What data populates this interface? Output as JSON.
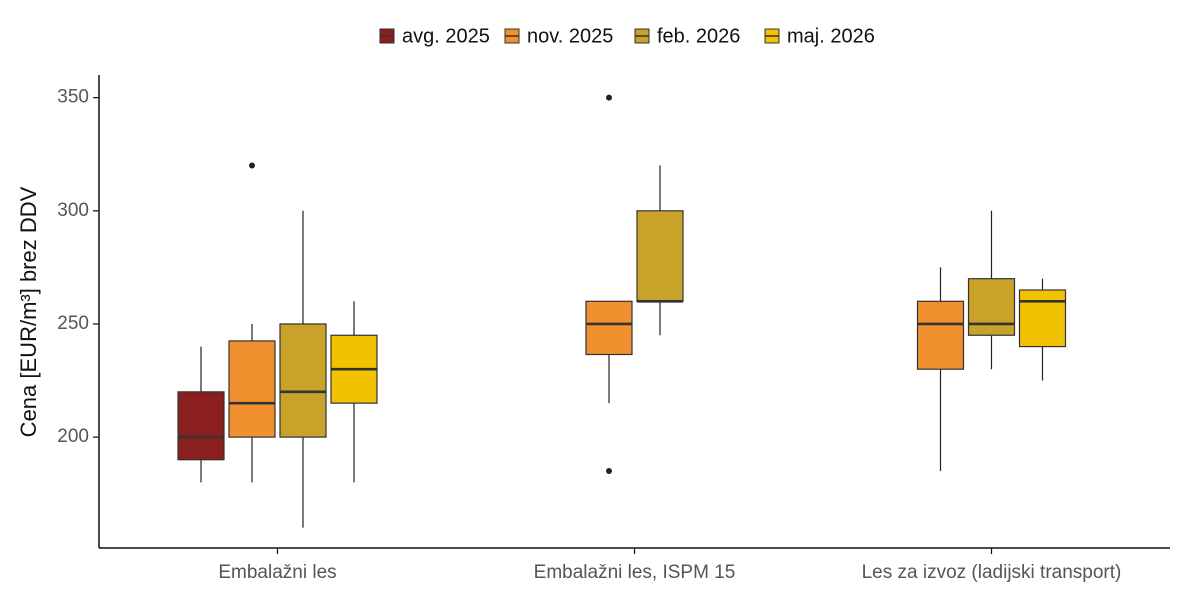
{
  "chart_data": {
    "type": "boxplot",
    "y_label": "Cena [EUR/m³] brez DDV",
    "categories": [
      "Embalažni les",
      "Embalažni les, ISPM 15",
      "Les za izvoz (ladijski transport)"
    ],
    "ylim": [
      151,
      360
    ],
    "yticks": [
      200,
      250,
      300,
      350
    ],
    "grid": false,
    "legend": "top",
    "series": [
      {
        "name": "avg. 2025",
        "color": "#8b1e1e",
        "boxes": [
          {
            "min": 180,
            "q1": 190,
            "median": 200,
            "q3": 220,
            "max": 240
          },
          null,
          null
        ]
      },
      {
        "name": "nov. 2025",
        "color": "#f0902f",
        "boxes": [
          {
            "min": 180,
            "q1": 200,
            "median": 215,
            "q3": 242.5,
            "max": 250,
            "outliers": [
              320
            ]
          },
          {
            "min": 215,
            "q1": 236.5,
            "median": 250,
            "q3": 260,
            "max": 260,
            "outliers": [
              350,
              185
            ]
          },
          {
            "min": 185,
            "q1": 230,
            "median": 250,
            "q3": 260,
            "max": 275
          }
        ]
      },
      {
        "name": "feb. 2026",
        "color": "#c9a22a",
        "boxes": [
          {
            "min": 160,
            "q1": 200,
            "median": 220,
            "q3": 250,
            "max": 300
          },
          {
            "min": 245,
            "q1": 260,
            "median": 260,
            "q3": 300,
            "max": 320
          },
          {
            "min": 230,
            "q1": 245,
            "median": 250,
            "q3": 270,
            "max": 300
          }
        ]
      },
      {
        "name": "maj. 2026",
        "color": "#f2c200",
        "boxes": [
          {
            "min": 180,
            "q1": 215,
            "median": 230,
            "q3": 245,
            "max": 260
          },
          null,
          {
            "min": 225,
            "q1": 240,
            "median": 260,
            "q3": 265,
            "max": 270
          }
        ]
      }
    ]
  }
}
